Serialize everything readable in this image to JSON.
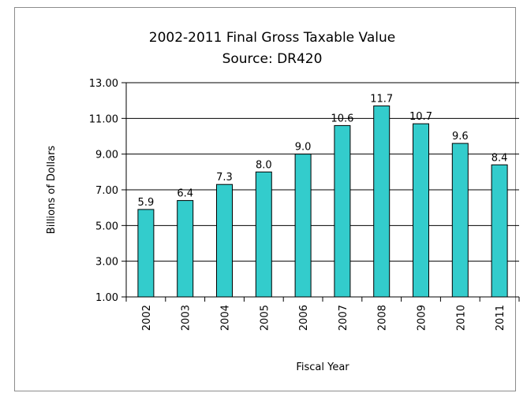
{
  "chart_data": {
    "type": "bar",
    "title": "2002-2011 Final Gross Taxable Value",
    "subtitle": "Source:  DR420",
    "xlabel": "Fiscal Year",
    "ylabel": "Billions of Dollars",
    "categories": [
      "2002",
      "2003",
      "2004",
      "2005",
      "2006",
      "2007",
      "2008",
      "2009",
      "2010",
      "2011"
    ],
    "values": [
      5.9,
      6.4,
      7.3,
      8.0,
      9.0,
      10.6,
      11.7,
      10.7,
      9.6,
      8.4
    ],
    "data_labels": [
      "5.9",
      "6.4",
      "7.3",
      "8.0",
      "9.0",
      "10.6",
      "11.7",
      "10.7",
      "9.6",
      "8.4"
    ],
    "ylim": [
      1.0,
      13.0
    ],
    "yticks": [
      1.0,
      3.0,
      5.0,
      7.0,
      9.0,
      11.0,
      13.0
    ],
    "ytick_labels": [
      "1.00",
      "3.00",
      "5.00",
      "7.00",
      "9.00",
      "11.00",
      "13.00"
    ],
    "grid": true,
    "legend": "none",
    "colors": {
      "bar_fill": "#33cccc",
      "bar_stroke": "#000000",
      "gridline": "#000000",
      "frame_border": "#8c8c8c"
    }
  }
}
